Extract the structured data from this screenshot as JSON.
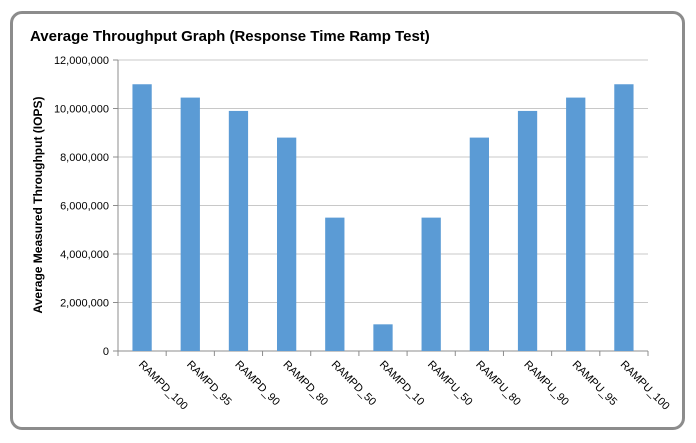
{
  "chart_data": {
    "type": "bar",
    "title": "Average Throughput Graph (Response Time Ramp Test)",
    "xlabel": "",
    "ylabel": "Average Measured Throughput (IOPS)",
    "ylim": [
      0,
      12000000
    ],
    "yticks": [
      "0",
      "2,000,000",
      "4,000,000",
      "6,000,000",
      "8,000,000",
      "10,000,000",
      "12,000,000"
    ],
    "ytick_values": [
      0,
      2000000,
      4000000,
      6000000,
      8000000,
      10000000,
      12000000
    ],
    "categories": [
      "RAMPD_100",
      "RAMPD_95",
      "RAMPD_90",
      "RAMPD_80",
      "RAMPD_50",
      "RAMPD_10",
      "RAMPU_50",
      "RAMPU_80",
      "RAMPU_90",
      "RAMPU_95",
      "RAMPU_100"
    ],
    "values": [
      11000000,
      10450000,
      9900000,
      8800000,
      5500000,
      1100000,
      5500000,
      8800000,
      9900000,
      10450000,
      11000000
    ],
    "grid": true,
    "legend": "none",
    "bar_color": "#5b9bd5",
    "grid_color": "#c8c8c8",
    "axis_color": "#8c8c8c"
  }
}
